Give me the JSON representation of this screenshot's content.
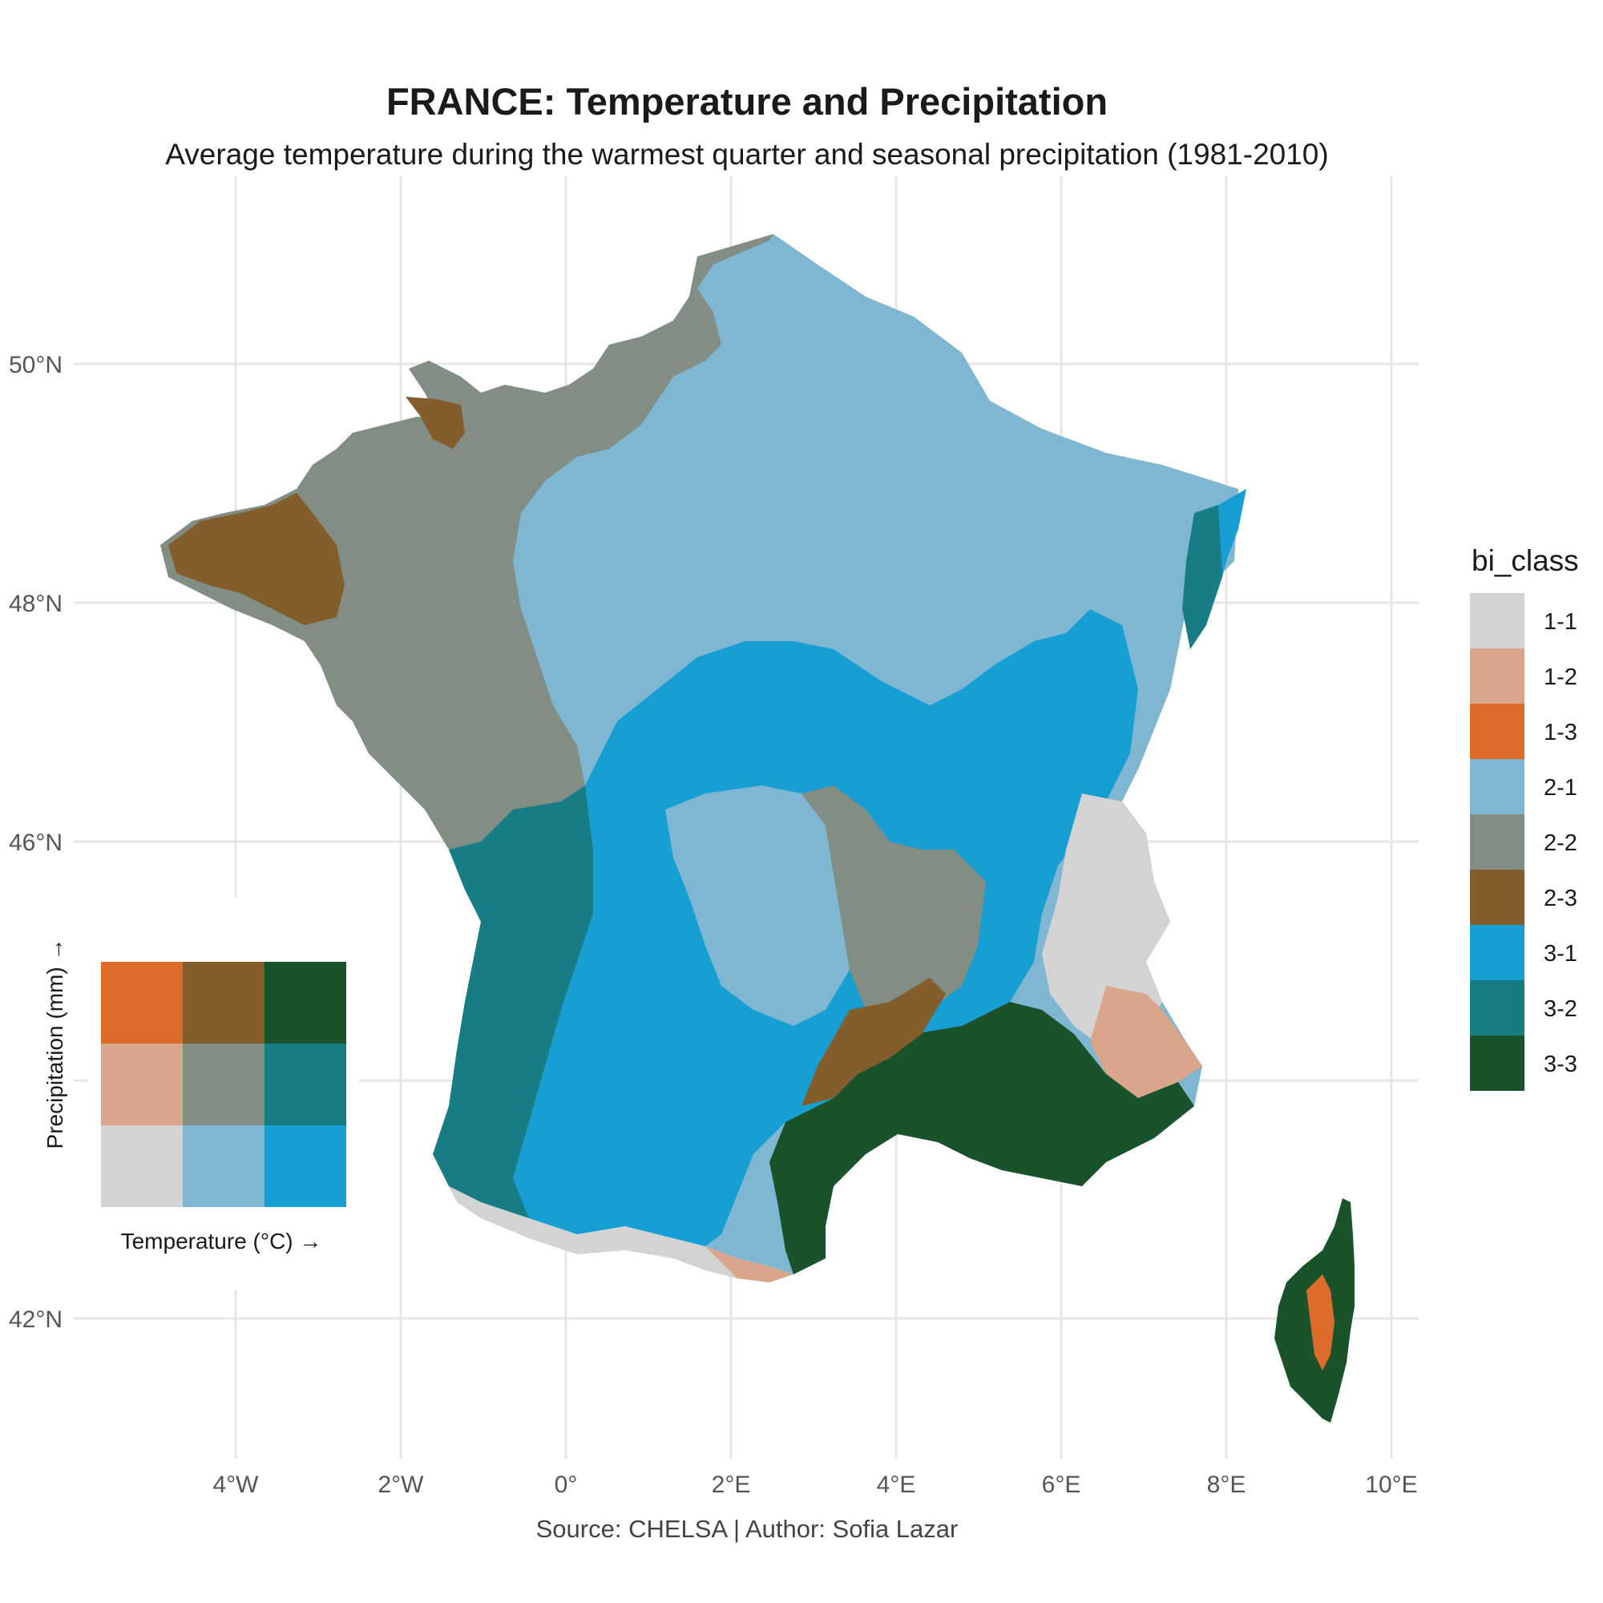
{
  "title": "FRANCE: Temperature and Precipitation",
  "subtitle": "Average temperature during the warmest quarter and seasonal precipitation (1981-2010)",
  "caption": "Source: CHELSA | Author: Sofia Lazar",
  "axes": {
    "x_ticks": [
      "4°W",
      "2°W",
      "0°",
      "2°E",
      "4°E",
      "6°E",
      "8°E",
      "10°E"
    ],
    "y_ticks": [
      "50°N",
      "48°N",
      "46°N",
      "42°N"
    ]
  },
  "legend": {
    "title": "bi_class",
    "classes": [
      {
        "label": "1-1",
        "color": "#d3d3d3"
      },
      {
        "label": "1-2",
        "color": "#d9a58b"
      },
      {
        "label": "1-3",
        "color": "#dd6c2b"
      },
      {
        "label": "2-1",
        "color": "#7fb7d3"
      },
      {
        "label": "2-2",
        "color": "#828e83"
      },
      {
        "label": "2-3",
        "color": "#835d2c"
      },
      {
        "label": "3-1",
        "color": "#179fd3"
      },
      {
        "label": "3-2",
        "color": "#187c84"
      },
      {
        "label": "3-3",
        "color": "#19522b"
      }
    ]
  },
  "bivariate_key": {
    "x_label": "Temperature (°C) →",
    "y_label": "Precipitation (mm) →"
  }
}
